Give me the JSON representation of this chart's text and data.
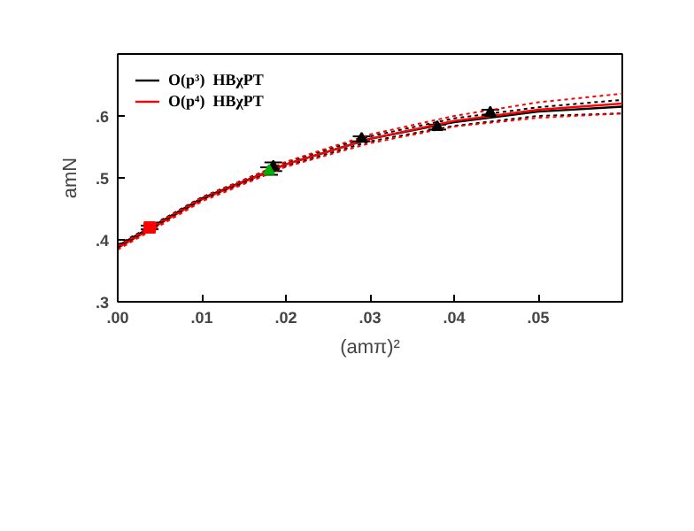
{
  "chart_data": {
    "type": "line",
    "xlabel": "(amπ)²",
    "ylabel": "amN",
    "xlim": [
      0,
      0.06
    ],
    "ylim": [
      0.3,
      0.7
    ],
    "xticks": [
      {
        "value": 0,
        "label": ".00"
      },
      {
        "value": 0.01,
        "label": ".01"
      },
      {
        "value": 0.02,
        "label": ".02"
      },
      {
        "value": 0.03,
        "label": ".03"
      },
      {
        "value": 0.04,
        "label": ".04"
      },
      {
        "value": 0.05,
        "label": ".05"
      }
    ],
    "yticks": [
      {
        "value": 0.3,
        "label": ".3"
      },
      {
        "value": 0.4,
        "label": ".4"
      },
      {
        "value": 0.5,
        "label": ".5"
      },
      {
        "value": 0.6,
        "label": ".6"
      }
    ],
    "grid": false,
    "legend": "top left",
    "series": [
      {
        "name": "O(p³)  HBχPT",
        "color": "#000000",
        "x": [
          0,
          0.01,
          0.02,
          0.03,
          0.04,
          0.05,
          0.06
        ],
        "values": [
          0.39,
          0.467,
          0.522,
          0.563,
          0.59,
          0.607,
          0.615
        ]
      },
      {
        "name": "O(p⁴)  HBχPT",
        "color": "#ff0000",
        "x": [
          0,
          0.01,
          0.02,
          0.03,
          0.04,
          0.05,
          0.06
        ],
        "values": [
          0.387,
          0.465,
          0.522,
          0.563,
          0.592,
          0.61,
          0.62
        ]
      },
      {
        "line_style": "dotted",
        "color": "#000000",
        "x": [
          0,
          0.01,
          0.02,
          0.03,
          0.04,
          0.05,
          0.06
        ],
        "values": [
          0.388,
          0.465,
          0.519,
          0.559,
          0.584,
          0.6,
          0.604
        ]
      },
      {
        "line_style": "dotted",
        "color": "#000000",
        "x": [
          0,
          0.01,
          0.02,
          0.03,
          0.04,
          0.05,
          0.06
        ],
        "values": [
          0.392,
          0.469,
          0.525,
          0.567,
          0.596,
          0.614,
          0.626
        ]
      },
      {
        "line_style": "dotted",
        "color": "#ff0000",
        "x": [
          0,
          0.01,
          0.02,
          0.03,
          0.04,
          0.05,
          0.06
        ],
        "values": [
          0.384,
          0.462,
          0.518,
          0.556,
          0.583,
          0.597,
          0.604
        ]
      },
      {
        "line_style": "dotted",
        "color": "#ff0000",
        "x": [
          0,
          0.01,
          0.02,
          0.03,
          0.04,
          0.05,
          0.06
        ],
        "values": [
          0.39,
          0.468,
          0.526,
          0.57,
          0.6,
          0.622,
          0.636
        ]
      },
      {
        "type": "scatter",
        "marker": "triangle",
        "color": "#000000",
        "x": [
          0.0185,
          0.029,
          0.038,
          0.0443
        ],
        "values": [
          0.518,
          0.563,
          0.582,
          0.605
        ],
        "errors": [
          0.007,
          0.004,
          0.004,
          0.005
        ]
      },
      {
        "type": "scatter",
        "marker": "triangle",
        "color": "#00b000",
        "x": [
          0.018
        ],
        "values": [
          0.511
        ],
        "errors": [
          0.006
        ]
      },
      {
        "type": "scatter",
        "marker": "square",
        "color": "#ff0000",
        "x": [
          0.0038
        ],
        "values": [
          0.42
        ],
        "errors": [
          0.003
        ]
      }
    ]
  }
}
